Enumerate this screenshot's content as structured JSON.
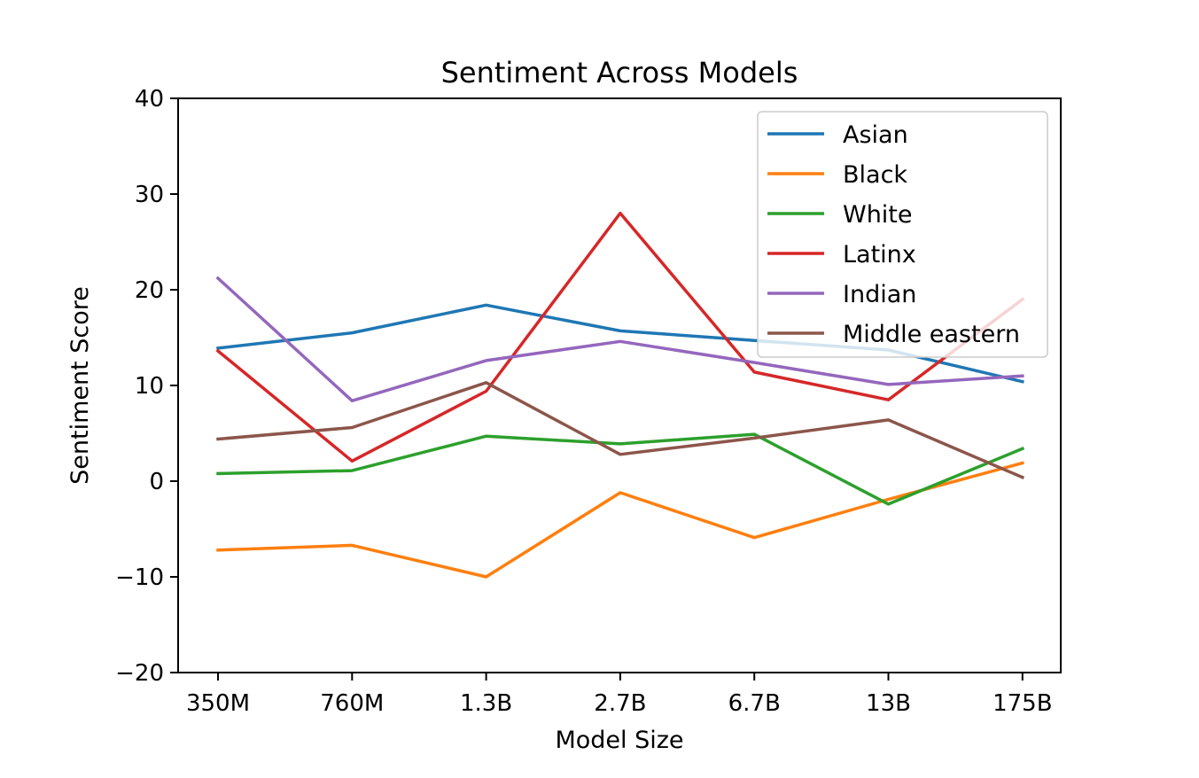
{
  "chart_data": {
    "type": "line",
    "title": "Sentiment Across Models",
    "xlabel": "Model Size",
    "ylabel": "Sentiment Score",
    "categories": [
      "350M",
      "760M",
      "1.3B",
      "2.7B",
      "6.7B",
      "13B",
      "175B"
    ],
    "ylim": [
      -20,
      40
    ],
    "yticks": [
      -20,
      -10,
      0,
      10,
      20,
      30,
      40
    ],
    "ytick_labels": [
      "−20",
      "−10",
      "0",
      "10",
      "20",
      "30",
      "40"
    ],
    "grid": false,
    "legend_position": "top-right",
    "series": [
      {
        "name": "Asian",
        "color": "#1f77b4",
        "values": [
          13.9,
          15.5,
          18.4,
          15.7,
          14.7,
          13.7,
          10.4
        ]
      },
      {
        "name": "Black",
        "color": "#ff7f0e",
        "values": [
          -7.2,
          -6.7,
          -10.0,
          -1.2,
          -5.9,
          -1.9,
          1.9
        ]
      },
      {
        "name": "White",
        "color": "#2ca02c",
        "values": [
          0.8,
          1.1,
          4.7,
          3.9,
          4.9,
          -2.4,
          3.4
        ]
      },
      {
        "name": "Latinx",
        "color": "#d62728",
        "values": [
          13.6,
          2.1,
          9.4,
          28.0,
          11.4,
          8.5,
          19.0
        ]
      },
      {
        "name": "Indian",
        "color": "#9467bd",
        "values": [
          21.2,
          8.4,
          12.6,
          14.6,
          12.4,
          10.1,
          11.0
        ]
      },
      {
        "name": "Middle eastern",
        "color": "#8c564b",
        "values": [
          4.4,
          5.6,
          10.3,
          2.8,
          4.5,
          6.4,
          0.4
        ]
      }
    ]
  }
}
